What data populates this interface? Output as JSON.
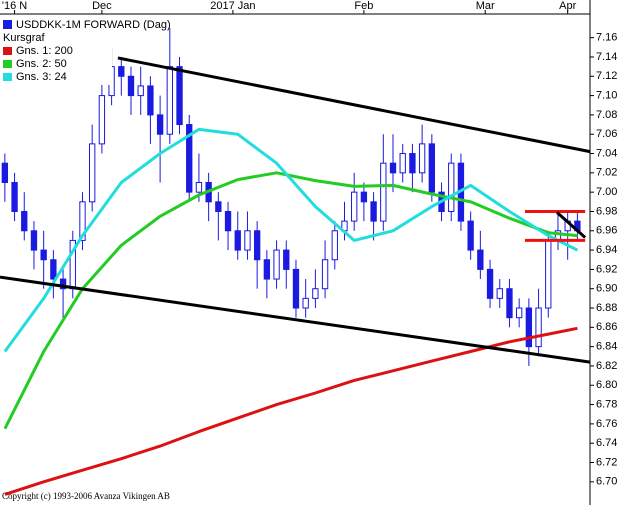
{
  "chart_data": {
    "type": "candlestick",
    "legend_title": "Kursgraf",
    "footer": "Copyright (c) 1993-2006 Avanza Vikingen AB",
    "legend": "upper left",
    "grid": false,
    "xlim": [
      -0.5,
      60.3
    ],
    "xticks": [
      {
        "value": 1,
        "label": "'16 N"
      },
      {
        "value": 10,
        "label": "Dec"
      },
      {
        "value": 23.5,
        "label": "2017 Jan"
      },
      {
        "value": 37,
        "label": "Feb"
      },
      {
        "value": 49.5,
        "label": "Mar"
      },
      {
        "value": 58,
        "label": "Apr"
      }
    ],
    "ylim": [
      6.676,
      7.199
    ],
    "yticks": [
      {
        "value": 6.7,
        "label": "6.70"
      },
      6.72,
      6.74,
      6.76,
      6.78,
      {
        "value": 6.8,
        "label": "6.80"
      },
      6.82,
      6.84,
      6.86,
      6.88,
      {
        "value": 6.9,
        "label": "6.90"
      },
      6.92,
      6.94,
      6.96,
      6.98,
      {
        "value": 7,
        "label": "7.00"
      },
      7.02,
      7.04,
      7.06,
      7.08,
      {
        "value": 7.1,
        "label": "7.10"
      },
      7.12,
      7.14,
      7.16
    ],
    "candles": {
      "name": "USDDKK-1M FORWARD (Dag)",
      "color": "#1a1ae0",
      "open": [
        7.03,
        7.01,
        6.98,
        6.96,
        6.94,
        6.93,
        6.91,
        6.9,
        6.95,
        6.99,
        7.05,
        7.1,
        7.13,
        7.12,
        7.1,
        7.11,
        7.08,
        7.06,
        7.13,
        7.07,
        7.0,
        7.01,
        6.99,
        6.98,
        6.96,
        6.94,
        6.96,
        6.93,
        6.91,
        6.94,
        6.92,
        6.88,
        6.89,
        6.9,
        6.93,
        6.96,
        6.97,
        7.0,
        6.99,
        6.97,
        7.03,
        7.02,
        7.04,
        7.02,
        7.05,
        7.0,
        6.98,
        7.03,
        6.97,
        6.94,
        6.92,
        6.89,
        6.9,
        6.87,
        6.88,
        6.84,
        6.88,
        6.95,
        6.96,
        6.97
      ],
      "high": [
        7.04,
        7.02,
        7.0,
        6.97,
        6.96,
        6.94,
        6.92,
        6.96,
        7.0,
        7.07,
        7.14,
        7.15,
        7.14,
        7.13,
        7.13,
        7.12,
        7.1,
        7.17,
        7.14,
        7.08,
        7.04,
        7.02,
        7.0,
        6.99,
        6.98,
        6.98,
        6.97,
        6.94,
        6.95,
        6.95,
        6.93,
        6.91,
        6.92,
        6.95,
        6.97,
        6.99,
        7.02,
        7.01,
        7.0,
        7.06,
        7.06,
        7.05,
        7.05,
        7.07,
        7.06,
        7.01,
        7.04,
        7.04,
        6.98,
        6.96,
        6.93,
        6.91,
        6.91,
        6.89,
        6.89,
        6.9,
        6.96,
        6.98,
        6.98,
        6.98
      ],
      "low": [
        6.99,
        6.97,
        6.95,
        6.92,
        6.9,
        6.89,
        6.87,
        6.89,
        6.94,
        6.98,
        7.04,
        7.09,
        7.1,
        7.08,
        7.08,
        7.05,
        7.01,
        7.05,
        7.06,
        6.99,
        6.99,
        6.97,
        6.95,
        6.94,
        6.93,
        6.93,
        6.9,
        6.89,
        6.9,
        6.9,
        6.87,
        6.87,
        6.88,
        6.89,
        6.92,
        6.95,
        6.96,
        6.97,
        6.95,
        6.96,
        7.0,
        7.01,
        7.0,
        7.01,
        6.99,
        6.97,
        6.97,
        6.96,
        6.93,
        6.91,
        6.88,
        6.88,
        6.86,
        6.86,
        6.82,
        6.83,
        6.87,
        6.94,
        6.93,
        6.95
      ],
      "close": [
        7.01,
        6.98,
        6.96,
        6.94,
        6.93,
        6.91,
        6.9,
        6.95,
        6.99,
        7.05,
        7.1,
        7.13,
        7.12,
        7.1,
        7.11,
        7.08,
        7.06,
        7.13,
        7.07,
        7.0,
        7.01,
        6.99,
        6.98,
        6.96,
        6.94,
        6.96,
        6.93,
        6.91,
        6.94,
        6.92,
        6.88,
        6.89,
        6.9,
        6.93,
        6.96,
        6.97,
        7.0,
        6.99,
        6.97,
        7.03,
        7.02,
        7.04,
        7.02,
        7.05,
        7.0,
        6.98,
        7.03,
        6.97,
        6.94,
        6.92,
        6.89,
        6.9,
        6.87,
        6.88,
        6.84,
        6.88,
        6.95,
        6.96,
        6.97,
        6.96
      ]
    },
    "series": [
      {
        "name": "Gns. 1: 200",
        "color": "#dd1111",
        "x": [
          0,
          4,
          8,
          12,
          16,
          20,
          24,
          28,
          32,
          36,
          40,
          44,
          48,
          52,
          56,
          59
        ],
        "values": [
          6.687,
          6.7,
          6.712,
          6.724,
          6.737,
          6.752,
          6.766,
          6.78,
          6.792,
          6.805,
          6.815,
          6.825,
          6.835,
          6.845,
          6.853,
          6.859
        ]
      },
      {
        "name": "Gns. 2: 50",
        "color": "#22cc22",
        "x": [
          0,
          4,
          8,
          12,
          16,
          20,
          24,
          28,
          32,
          36,
          40,
          44,
          48,
          52,
          56,
          59
        ],
        "values": [
          6.755,
          6.835,
          6.9,
          6.945,
          6.975,
          6.997,
          7.013,
          7.02,
          7.012,
          7.006,
          7.007,
          6.998,
          6.99,
          6.973,
          6.958,
          6.955
        ]
      },
      {
        "name": "Gns. 3: 24",
        "color": "#22dddd",
        "x": [
          0,
          4,
          8,
          12,
          16,
          20,
          24,
          28,
          32,
          36,
          40,
          44,
          48,
          52,
          56,
          59
        ],
        "values": [
          6.835,
          6.89,
          6.955,
          7.01,
          7.04,
          7.065,
          7.06,
          7.03,
          6.985,
          6.95,
          6.96,
          6.985,
          7.007,
          6.98,
          6.955,
          6.94
        ]
      }
    ],
    "trend_lines": [
      {
        "color": "#000000",
        "x": [
          11.65,
          60.3
        ],
        "y": [
          7.139,
          7.042
        ]
      },
      {
        "color": "#000000",
        "x": [
          -0.5,
          60.3
        ],
        "y": [
          6.912,
          6.824
        ]
      },
      {
        "color": "#ee1111",
        "x": [
          53.6,
          59.8
        ],
        "y": [
          6.98,
          6.98
        ]
      },
      {
        "color": "#ee1111",
        "x": [
          53.6,
          59.8
        ],
        "y": [
          6.95,
          6.95
        ]
      },
      {
        "color": "#000000",
        "x": [
          56.9,
          59.8
        ],
        "y": [
          6.979,
          6.953
        ]
      }
    ]
  }
}
